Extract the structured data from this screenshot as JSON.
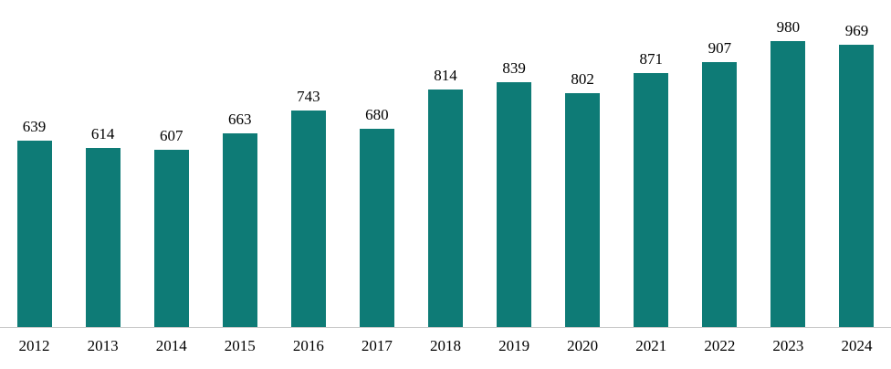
{
  "chart_data": {
    "type": "bar",
    "title": "",
    "xlabel": "",
    "ylabel": "",
    "categories": [
      "2012",
      "2013",
      "2014",
      "2015",
      "2016",
      "2017",
      "2018",
      "2019",
      "2020",
      "2021",
      "2022",
      "2023",
      "2024"
    ],
    "values": [
      639,
      614,
      607,
      663,
      743,
      680,
      814,
      839,
      802,
      871,
      907,
      980,
      969
    ],
    "ylim": [
      0,
      1000
    ],
    "grid": false,
    "legend_position": "none",
    "value_labels_position": "above-bars",
    "bar_color": "#0e7b76",
    "label_color": "#000000",
    "axis_line_color": "#c6c6c6",
    "background_color": "#ffffff"
  }
}
